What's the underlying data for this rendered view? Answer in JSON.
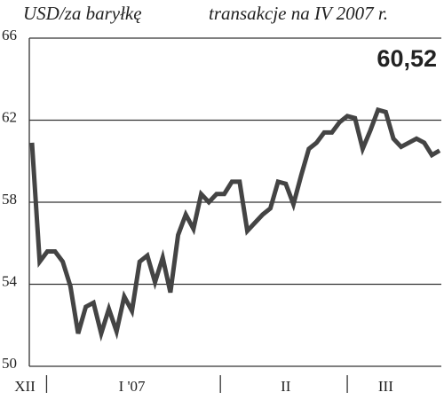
{
  "chart_data": {
    "type": "line",
    "title": "USD/za baryłkę",
    "subtitle": "transakcje na IV 2007 r.",
    "annotation": "60,52",
    "categories": [
      "XII",
      null,
      null,
      null,
      null,
      null,
      null,
      null,
      null,
      null,
      null,
      null,
      null,
      "I '07",
      null,
      null,
      null,
      null,
      null,
      null,
      null,
      null,
      null,
      null,
      null,
      null,
      null,
      null,
      null,
      null,
      null,
      null,
      null,
      "II",
      null,
      null,
      null,
      null,
      null,
      null,
      null,
      null,
      null,
      null,
      null,
      null,
      "III",
      null,
      null,
      null,
      null,
      null,
      null,
      null
    ],
    "series": [
      {
        "name": "USD/za baryłkę",
        "color": "#444444",
        "values": [
          60.9,
          55.1,
          55.6,
          55.6,
          55.1,
          53.9,
          51.6,
          52.9,
          53.1,
          51.6,
          52.8,
          51.7,
          53.4,
          52.7,
          55.1,
          55.4,
          54.1,
          55.3,
          53.6,
          56.4,
          57.4,
          56.7,
          58.4,
          58.0,
          58.4,
          58.4,
          59.0,
          59.0,
          56.6,
          57.0,
          57.4,
          57.7,
          59.0,
          58.9,
          57.9,
          59.3,
          60.6,
          60.9,
          61.4,
          61.4,
          61.9,
          62.2,
          62.1,
          60.6,
          61.5,
          62.5,
          62.4,
          61.1,
          60.7,
          60.9,
          61.1,
          60.9,
          60.3,
          60.52
        ]
      }
    ],
    "ylim": [
      50,
      66
    ],
    "yticks": [
      50,
      54,
      58,
      62,
      66
    ],
    "grid": true
  }
}
